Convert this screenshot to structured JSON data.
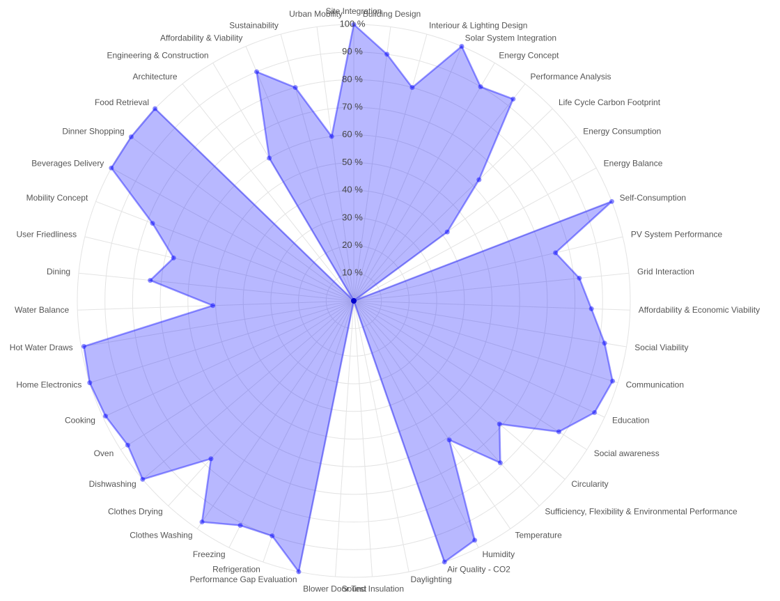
{
  "chart_data": {
    "type": "radar",
    "categories": [
      "Site Integration",
      "Building Design",
      "Interiour & Lighting Design",
      "Solar System Integration",
      "Energy Concept",
      "Performance Analysis",
      "Life Cycle Carbon Footprint",
      "Energy Consumption",
      "Energy Balance",
      "Self-Consumption",
      "PV System Performance",
      "Grid Interaction",
      "Affordability & Economic Viability",
      "Social Viability",
      "Communication",
      "Education",
      "Social awareness",
      "Circularity",
      "Sufficiency, Flexibility & Environmental Performance",
      "Temperature",
      "Humidity",
      "Air Quality - CO2",
      "Daylighting",
      "Sound Insulation",
      "Blower Door Test",
      "Performance Gap Evaluation",
      "Refrigeration",
      "Freezing",
      "Clothes Washing",
      "Clothes Drying",
      "Dishwashing",
      "Oven",
      "Cooking",
      "Home Electronics",
      "Hot Water Draws",
      "Water Balance",
      "Dining",
      "User Friedliness",
      "Mobility Concept",
      "Beverages Delivery",
      "Dinner Shopping",
      "Food Retrieval",
      "Architecture",
      "Engineering & Construction",
      "Affordability & Viability",
      "Sustainability",
      "Urban Mobility"
    ],
    "values": [
      100,
      90,
      80,
      100,
      90,
      93,
      63,
      42,
      0,
      100,
      75,
      82,
      86,
      92,
      98,
      96,
      88,
      69,
      79,
      61,
      97,
      100,
      0,
      0,
      0,
      100,
      90,
      91,
      97,
      77,
      100,
      97,
      99,
      100,
      99,
      51,
      74,
      67,
      78,
      100,
      100,
      100,
      0,
      60,
      90,
      80,
      60
    ],
    "color": "#0000ff",
    "ylim": [
      0,
      100
    ],
    "yticks": [
      {
        "value": 10,
        "label": "10 %"
      },
      {
        "value": 20,
        "label": "20 %"
      },
      {
        "value": 30,
        "label": "30 %"
      },
      {
        "value": 40,
        "label": "40 %"
      },
      {
        "value": 50,
        "label": "50 %"
      },
      {
        "value": 60,
        "label": "60 %"
      },
      {
        "value": 70,
        "label": "70 %"
      },
      {
        "value": 80,
        "label": "80 %"
      },
      {
        "value": 90,
        "label": "90 %"
      },
      {
        "value": 100,
        "label": "100 %"
      }
    ],
    "grid": true
  }
}
